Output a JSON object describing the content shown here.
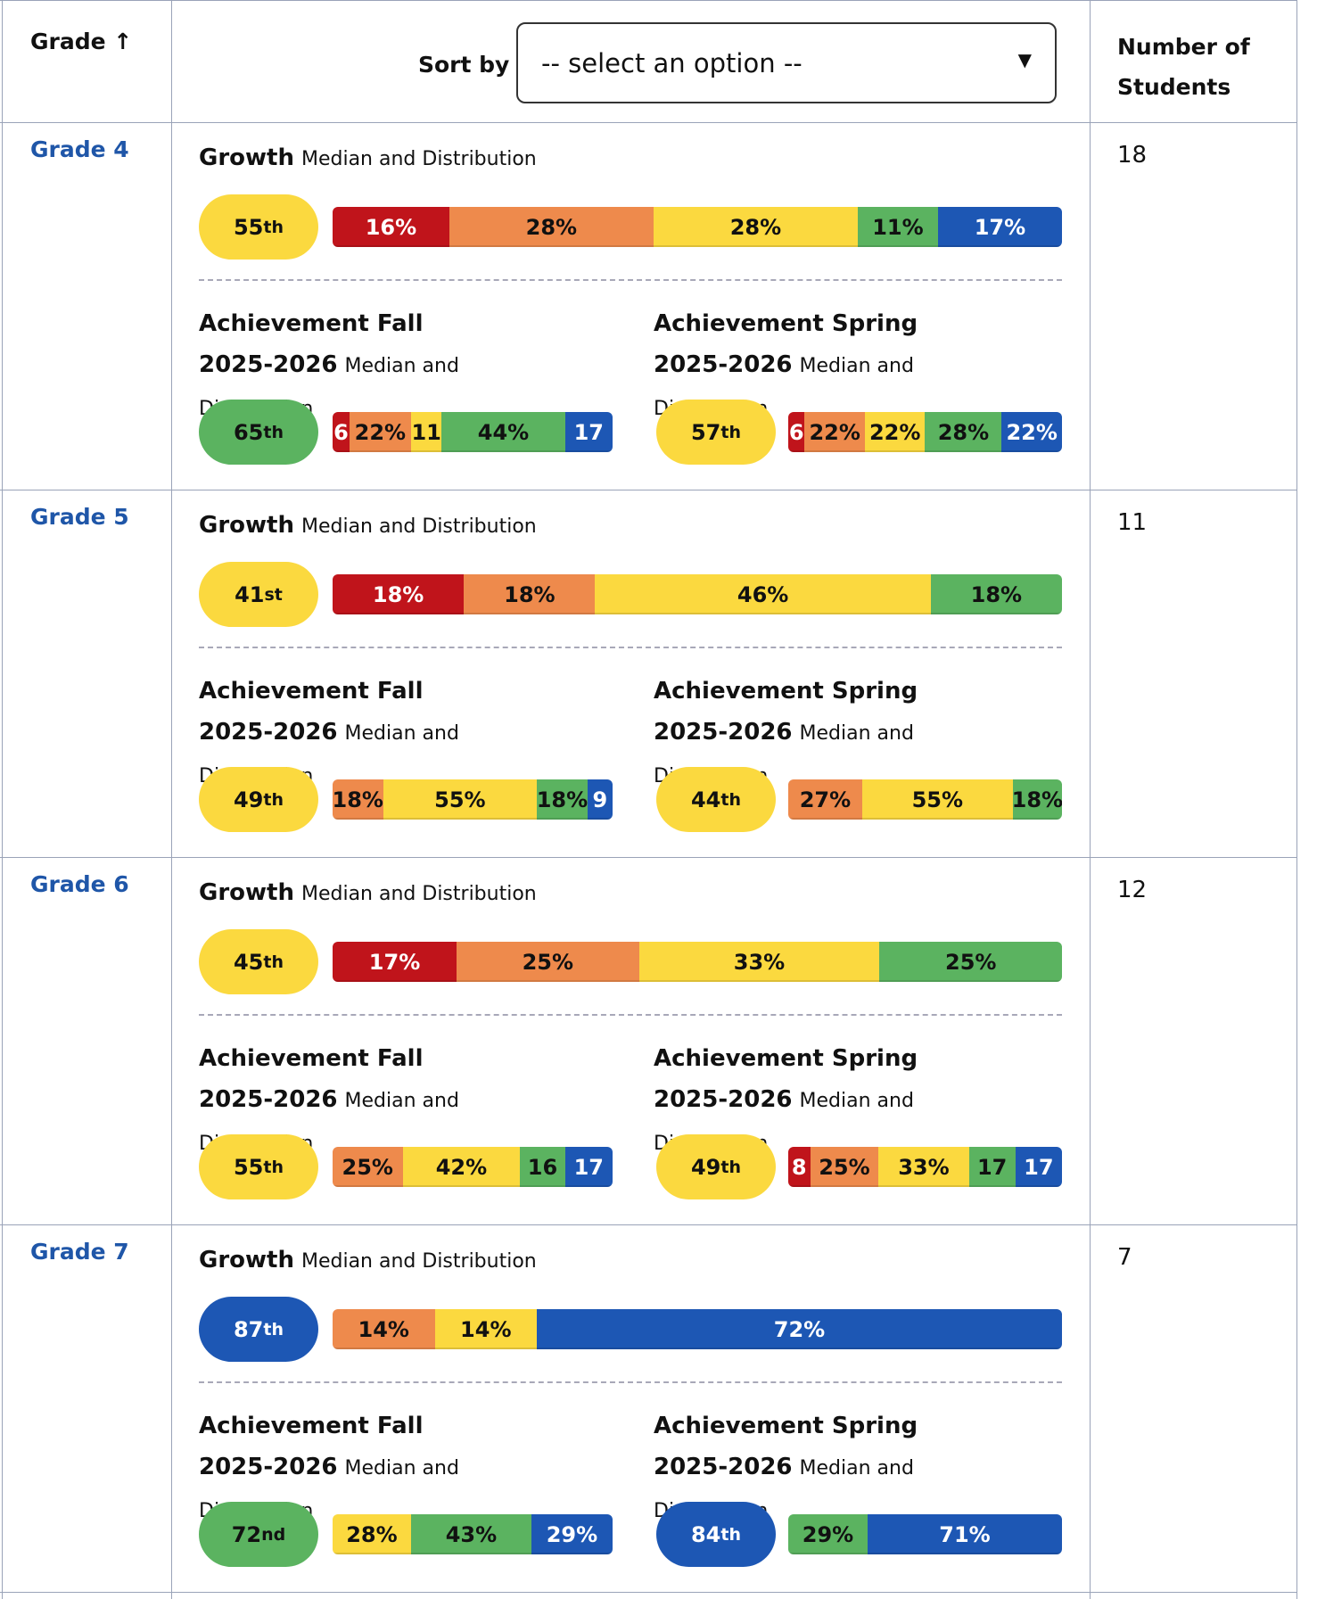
{
  "header": {
    "grade": "Grade",
    "sort_by": "Sort by",
    "select_placeholder": "-- select an option --",
    "students": "Number of Students"
  },
  "rows": [
    {
      "grade": "Grade 4",
      "students": 18,
      "growth": {
        "title": "Growth",
        "subtitle": "Median and Distribution",
        "median": 55,
        "median_suffix": "th",
        "median_color": "#fbd93f",
        "values": [
          16,
          28,
          28,
          11,
          17
        ],
        "value_labels": [
          "16%",
          "28%",
          "28%",
          "11%",
          "17%"
        ],
        "colors": [
          "#c0141b",
          "#ee8a4c",
          "#fbd93f",
          "#5bb360",
          "#1d57b4"
        ]
      },
      "fall": {
        "title": "Achievement Fall 2025-2026",
        "subtitle": "Median and Distribution",
        "median": 65,
        "median_suffix": "th",
        "median_color": "#5bb360",
        "values": [
          6,
          22,
          11,
          44,
          17
        ],
        "value_labels": [
          "6",
          "22%",
          "11",
          "44%",
          "17"
        ],
        "colors": [
          "#c0141b",
          "#ee8a4c",
          "#fbd93f",
          "#5bb360",
          "#1d57b4"
        ]
      },
      "spring": {
        "title": "Achievement Spring 2025-2026",
        "subtitle": "Median and Distribution",
        "median": 57,
        "median_suffix": "th",
        "median_color": "#fbd93f",
        "values": [
          6,
          22,
          22,
          28,
          22
        ],
        "value_labels": [
          "6",
          "22%",
          "22%",
          "28%",
          "22%"
        ],
        "colors": [
          "#c0141b",
          "#ee8a4c",
          "#fbd93f",
          "#5bb360",
          "#1d57b4"
        ]
      }
    },
    {
      "grade": "Grade 5",
      "students": 11,
      "growth": {
        "title": "Growth",
        "subtitle": "Median and Distribution",
        "median": 41,
        "median_suffix": "st",
        "median_color": "#fbd93f",
        "values": [
          18,
          18,
          46,
          18
        ],
        "value_labels": [
          "18%",
          "18%",
          "46%",
          "18%"
        ],
        "colors": [
          "#c0141b",
          "#ee8a4c",
          "#fbd93f",
          "#5bb360"
        ]
      },
      "fall": {
        "title": "Achievement Fall 2025-2026",
        "subtitle": "Median and Distribution",
        "median": 49,
        "median_suffix": "th",
        "median_color": "#fbd93f",
        "values": [
          18,
          55,
          18,
          9
        ],
        "value_labels": [
          "18%",
          "55%",
          "18%",
          "9"
        ],
        "colors": [
          "#ee8a4c",
          "#fbd93f",
          "#5bb360",
          "#1d57b4"
        ]
      },
      "spring": {
        "title": "Achievement Spring 2025-2026",
        "subtitle": "Median and Distribution",
        "median": 44,
        "median_suffix": "th",
        "median_color": "#fbd93f",
        "values": [
          27,
          55,
          18
        ],
        "value_labels": [
          "27%",
          "55%",
          "18%"
        ],
        "colors": [
          "#ee8a4c",
          "#fbd93f",
          "#5bb360"
        ]
      }
    },
    {
      "grade": "Grade 6",
      "students": 12,
      "growth": {
        "title": "Growth",
        "subtitle": "Median and Distribution",
        "median": 45,
        "median_suffix": "th",
        "median_color": "#fbd93f",
        "values": [
          17,
          25,
          33,
          25
        ],
        "value_labels": [
          "17%",
          "25%",
          "33%",
          "25%"
        ],
        "colors": [
          "#c0141b",
          "#ee8a4c",
          "#fbd93f",
          "#5bb360"
        ]
      },
      "fall": {
        "title": "Achievement Fall 2025-2026",
        "subtitle": "Median and Distribution",
        "median": 55,
        "median_suffix": "th",
        "median_color": "#fbd93f",
        "values": [
          25,
          42,
          16,
          17
        ],
        "value_labels": [
          "25%",
          "42%",
          "16",
          "17"
        ],
        "colors": [
          "#ee8a4c",
          "#fbd93f",
          "#5bb360",
          "#1d57b4"
        ]
      },
      "spring": {
        "title": "Achievement Spring 2025-2026",
        "subtitle": "Median and Distribution",
        "median": 49,
        "median_suffix": "th",
        "median_color": "#fbd93f",
        "values": [
          8,
          25,
          33,
          17,
          17
        ],
        "value_labels": [
          "8",
          "25%",
          "33%",
          "17",
          "17"
        ],
        "colors": [
          "#c0141b",
          "#ee8a4c",
          "#fbd93f",
          "#5bb360",
          "#1d57b4"
        ]
      }
    },
    {
      "grade": "Grade 7",
      "students": 7,
      "growth": {
        "title": "Growth",
        "subtitle": "Median and Distribution",
        "median": 87,
        "median_suffix": "th",
        "median_color": "#1d57b4",
        "values": [
          14,
          14,
          72
        ],
        "value_labels": [
          "14%",
          "14%",
          "72%"
        ],
        "colors": [
          "#ee8a4c",
          "#fbd93f",
          "#1d57b4"
        ]
      },
      "fall": {
        "title": "Achievement Fall 2025-2026",
        "subtitle": "Median and Distribution",
        "median": 72,
        "median_suffix": "nd",
        "median_color": "#5bb360",
        "values": [
          28,
          43,
          29
        ],
        "value_labels": [
          "28%",
          "43%",
          "29%"
        ],
        "colors": [
          "#fbd93f",
          "#5bb360",
          "#1d57b4"
        ]
      },
      "spring": {
        "title": "Achievement Spring 2025-2026",
        "subtitle": "Median and Distribution",
        "median": 84,
        "median_suffix": "th",
        "median_color": "#1d57b4",
        "values": [
          29,
          71
        ],
        "value_labels": [
          "29%",
          "71%"
        ],
        "colors": [
          "#5bb360",
          "#1d57b4"
        ]
      }
    }
  ]
}
